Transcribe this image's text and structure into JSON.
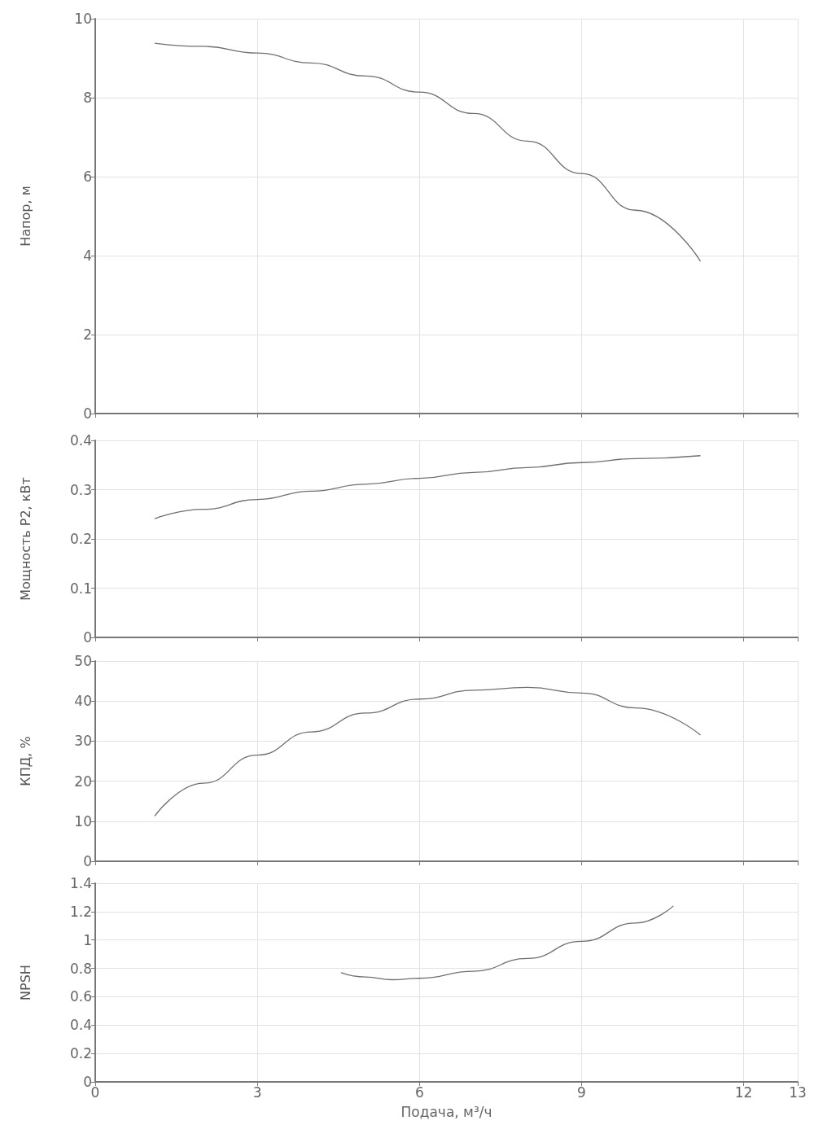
{
  "chart_data": [
    {
      "type": "line",
      "ylabel": "Напор, м",
      "x": [
        1.1,
        2,
        3,
        4,
        5,
        6,
        7,
        8,
        9,
        10,
        11.2
      ],
      "values": [
        9.38,
        9.3,
        9.13,
        8.88,
        8.55,
        8.14,
        7.6,
        6.9,
        6.08,
        5.15,
        3.86
      ],
      "color": "#6f6f6f",
      "xlim": [
        0,
        13
      ],
      "xticks": [
        0,
        3,
        6,
        9,
        12,
        13
      ],
      "ylim": [
        0,
        10
      ],
      "yticks": [
        0,
        2,
        4,
        6,
        8,
        10
      ],
      "grid": true,
      "tick_labels": "y",
      "marker": "none",
      "line_style": "solid"
    },
    {
      "type": "line",
      "ylabel": "Мощность P2, кВт",
      "x": [
        1.1,
        2,
        3,
        4,
        5,
        6,
        7,
        8,
        9,
        10,
        11.2
      ],
      "values": [
        0.241,
        0.26,
        0.28,
        0.297,
        0.311,
        0.323,
        0.335,
        0.345,
        0.355,
        0.363,
        0.369
      ],
      "color": "#6f6f6f",
      "xlim": [
        0,
        13
      ],
      "xticks": [
        0,
        3,
        6,
        9,
        12,
        13
      ],
      "ylim": [
        0,
        0.4
      ],
      "yticks": [
        0,
        0.1,
        0.2,
        0.3,
        0.4
      ],
      "grid": true,
      "tick_labels": "y",
      "marker": "none",
      "line_style": "solid"
    },
    {
      "type": "line",
      "ylabel": "КПД, %",
      "x": [
        1.1,
        2,
        3,
        4,
        5,
        6,
        7,
        8,
        9,
        10,
        11.2
      ],
      "values": [
        11.3,
        19.5,
        26.5,
        32.3,
        37,
        40.5,
        42.7,
        43.4,
        42,
        38.3,
        31.5
      ],
      "color": "#6f6f6f",
      "xlim": [
        0,
        13
      ],
      "xticks": [
        0,
        3,
        6,
        9,
        12,
        13
      ],
      "ylim": [
        0,
        50
      ],
      "yticks": [
        0,
        10,
        20,
        30,
        40,
        50
      ],
      "grid": true,
      "tick_labels": "y",
      "marker": "none",
      "line_style": "solid"
    },
    {
      "type": "line",
      "xlabel": "Подача, м³/ч",
      "ylabel": "NPSH",
      "x": [
        4.55,
        5,
        5.5,
        6,
        7,
        8,
        9,
        10,
        10.7
      ],
      "values": [
        0.77,
        0.74,
        0.72,
        0.73,
        0.78,
        0.87,
        0.99,
        1.12,
        1.24
      ],
      "color": "#6f6f6f",
      "xlim": [
        0,
        13
      ],
      "xticks": [
        0,
        3,
        6,
        9,
        12,
        13
      ],
      "ylim": [
        0,
        1.4
      ],
      "yticks": [
        0,
        0.2,
        0.4,
        0.6,
        0.8,
        1,
        1.2,
        1.4
      ],
      "grid": true,
      "marker": "none",
      "line_style": "solid"
    }
  ]
}
